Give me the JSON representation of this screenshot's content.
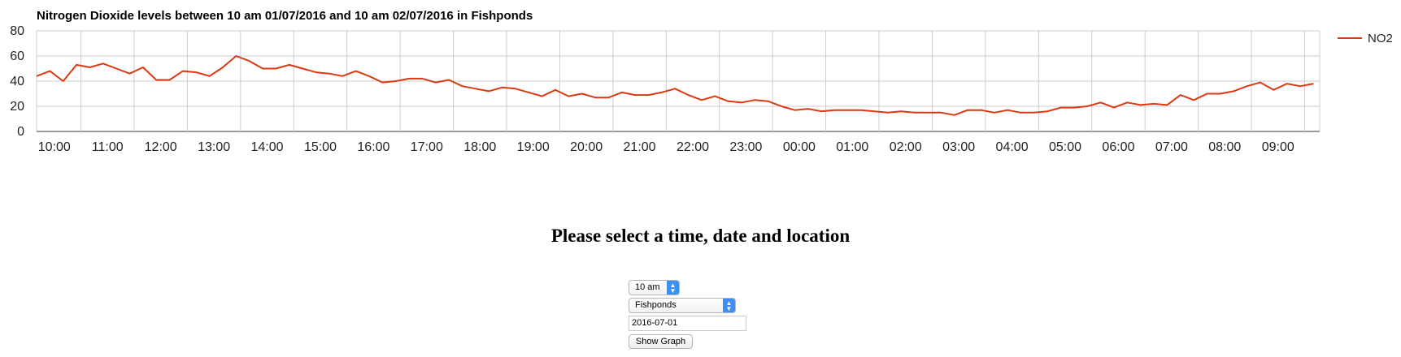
{
  "chart_data": {
    "type": "line",
    "title": "Nitrogen Dioxide levels between 10 am 01/07/2016 and 10 am 02/07/2016 in Fishponds",
    "xlabel": "",
    "ylabel": "",
    "ylim": [
      0,
      80
    ],
    "yticks": [
      0,
      20,
      40,
      60,
      80
    ],
    "xticks": [
      "10:00",
      "11:00",
      "12:00",
      "13:00",
      "14:00",
      "15:00",
      "16:00",
      "17:00",
      "18:00",
      "19:00",
      "20:00",
      "21:00",
      "22:00",
      "23:00",
      "00:00",
      "01:00",
      "02:00",
      "03:00",
      "04:00",
      "05:00",
      "06:00",
      "07:00",
      "08:00",
      "09:00"
    ],
    "x_start": "2016-07-01 09:40",
    "x_end": "2016-07-02 09:47",
    "x_interval_minutes": 15,
    "grid": true,
    "legend_position": "right",
    "series": [
      {
        "name": "NO2",
        "color": "#dc3912",
        "values": [
          44,
          48,
          40,
          53,
          51,
          54,
          50,
          46,
          51,
          41,
          41,
          48,
          47,
          44,
          51,
          60,
          56,
          50,
          50,
          53,
          50,
          47,
          46,
          44,
          48,
          44,
          39,
          40,
          42,
          42,
          39,
          41,
          36,
          34,
          32,
          35,
          34,
          31,
          28,
          33,
          28,
          30,
          27,
          27,
          31,
          29,
          29,
          31,
          34,
          29,
          25,
          28,
          24,
          23,
          25,
          24,
          20,
          17,
          18,
          16,
          17,
          17,
          17,
          16,
          15,
          16,
          15,
          15,
          15,
          13,
          17,
          17,
          15,
          17,
          15,
          15,
          16,
          19,
          19,
          20,
          23,
          19,
          23,
          21,
          22,
          21,
          29,
          25,
          30,
          30,
          32,
          36,
          39,
          33,
          38,
          36,
          38
        ]
      }
    ]
  },
  "form": {
    "heading": "Please select a time, date and location",
    "time_value": "10 am",
    "location_value": "Fishponds",
    "date_value": "2016-07-01",
    "button_label": "Show Graph"
  }
}
